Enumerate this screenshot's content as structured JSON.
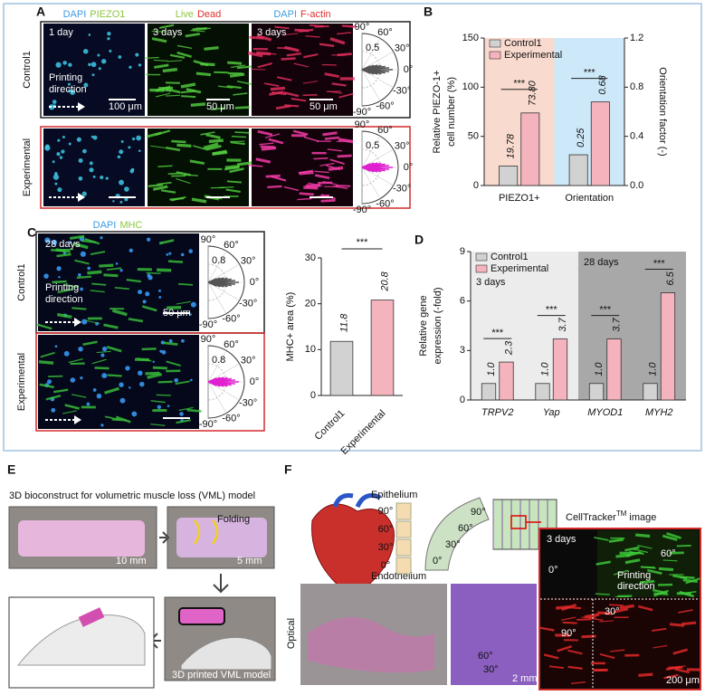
{
  "panel_labels": [
    "A",
    "B",
    "C",
    "D",
    "E",
    "F"
  ],
  "panel_a": {
    "stain_1": [
      "DAPI",
      "PIEZO1"
    ],
    "stain_2": [
      "Live",
      "Dead"
    ],
    "stain_3": [
      "DAPI",
      "F-actin"
    ],
    "times": [
      "1 day",
      "3 days",
      "3 days"
    ],
    "rows": [
      "Control1",
      "Experimental"
    ],
    "printing_direction": [
      "Printing",
      "direction"
    ],
    "scale_bars": [
      "100 μm",
      "50 μm",
      "50 μm"
    ],
    "polar_ticks": [
      "90°",
      "60°",
      "30°",
      "0°",
      "-30°",
      "-60°",
      "-90°"
    ],
    "polar_radius": "0.5"
  },
  "panel_c": {
    "stain": [
      "DAPI",
      "MHC"
    ],
    "time": "28 days",
    "rows": [
      "Control1",
      "Experimental"
    ],
    "printing_direction": [
      "Printing",
      "direction"
    ],
    "scale_bar": "50 μm",
    "polar_radius": "0.8"
  },
  "panel_e": {
    "title": "3D bioconstruct for volumetric muscle loss (VML) model",
    "scale_bars": [
      "10 mm",
      "5 mm"
    ],
    "folding": "Folding",
    "model": "3D printed VML model"
  },
  "panel_f": {
    "epithelium": "Epithelium",
    "endothelium": "Endothelium",
    "layer_angles": [
      "90°",
      "60°",
      "30°",
      "0°"
    ],
    "optical": "Optical",
    "optical_scale": "2 mm",
    "micro_angles": [
      "60°",
      "30°"
    ],
    "tracker_title": [
      "CellTracker",
      "TM",
      "image"
    ],
    "time": "3 days",
    "printing_direction": [
      "Printing",
      "direction"
    ],
    "tracker_angles": [
      "60°",
      "0°",
      "30°",
      "90°"
    ],
    "tracker_scale": "200 μm"
  },
  "chart_data": [
    {
      "type": "bar",
      "categories": [
        "PIEZO1+",
        "Orientation"
      ],
      "value_axes": [
        "y",
        "y2"
      ],
      "series": [
        {
          "name": "Control1",
          "color": "#d2d2d2",
          "values": [
            19.78,
            0.25
          ],
          "value_labels": [
            "19.78",
            "0.25"
          ]
        },
        {
          "name": "Experimental",
          "color": "#f4b3bd",
          "values": [
            73.8,
            0.68
          ],
          "value_labels": [
            "73.80",
            "0.68"
          ]
        }
      ],
      "ylabel": [
        "Relative PIEZO-1+",
        "cell number (%)"
      ],
      "y2label": "Orientation factor (-)",
      "ylim": [
        0,
        150
      ],
      "yticks": [
        0,
        50,
        100,
        150
      ],
      "y2lim": [
        0,
        1.2
      ],
      "y2ticks": [
        {
          "value": 0,
          "label": "0.0"
        },
        0.4,
        0.8,
        1.2
      ],
      "region_colors": [
        "#f9dacf",
        "#cde8f8"
      ],
      "significance_labels": [
        "***",
        "***"
      ],
      "legend": "upper left"
    },
    {
      "type": "bar",
      "categories": [
        "Control1",
        "Experimental"
      ],
      "values": [
        11.8,
        20.8
      ],
      "colors": [
        "#d2d2d2",
        "#f4b3bd"
      ],
      "ylabel": "MHC+ area (%)",
      "ylim": [
        0,
        30
      ],
      "yticks": [
        0,
        10,
        20,
        30
      ],
      "significance_label": "***"
    },
    {
      "type": "bar",
      "categories": [
        "TRPV2",
        "Yap",
        "MYOD1",
        "MYH2"
      ],
      "series": [
        {
          "name": "Control1",
          "color": "#d2d2d2",
          "values": [
            1,
            1,
            1,
            1
          ],
          "value_labels": [
            "1.0",
            "1.0",
            "1.0",
            "1.0"
          ]
        },
        {
          "name": "Experimental",
          "color": "#f4b3bd",
          "values": [
            2.3,
            3.7,
            3.7,
            6.5
          ],
          "value_labels": [
            "2.3",
            "3.7",
            "3.7",
            "6.5"
          ]
        }
      ],
      "ylabel": [
        "Relative gene",
        "expression (-fold)"
      ],
      "ylim": [
        0,
        9
      ],
      "yticks": [
        0,
        3,
        6,
        9
      ],
      "region_colors": [
        "#ececec",
        "#ececec",
        "#a8a8a8",
        "#a8a8a8"
      ],
      "annotations": [
        "3 days",
        "28 days"
      ],
      "significance_labels": [
        "***",
        "***",
        "***",
        "***"
      ],
      "legend": "upper left"
    }
  ]
}
